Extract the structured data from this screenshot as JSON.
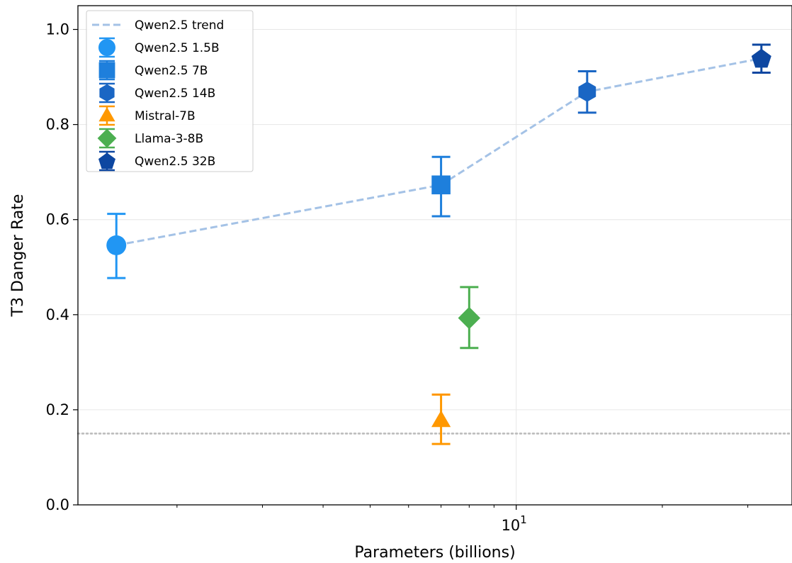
{
  "chart_data": {
    "type": "scatter",
    "xlabel": "Parameters (billions)",
    "ylabel": "T3 Danger Rate",
    "x_scale": "log",
    "xlim": [
      1.25,
      37
    ],
    "ylim": [
      0.0,
      1.05
    ],
    "x_ticks": [
      {
        "value": 10,
        "base": "10",
        "exp": "1"
      }
    ],
    "y_ticks": [
      0.0,
      0.2,
      0.4,
      0.6,
      0.8,
      1.0
    ],
    "y_tick_labels": [
      "0.0",
      "0.2",
      "0.4",
      "0.6",
      "0.8",
      "1.0"
    ],
    "grid": true,
    "legend_position": "upper-left",
    "reference_line": {
      "y": 0.15,
      "style": "dotted",
      "color": "#bbbbbb"
    },
    "trend": {
      "name": "Qwen2.5 trend",
      "color": "#a4c2e6",
      "x": [
        1.5,
        7,
        14,
        32
      ],
      "y": [
        0.546,
        0.673,
        0.869,
        0.939
      ]
    },
    "series": [
      {
        "name": "Qwen2.5 1.5B",
        "x": 1.5,
        "y": 0.546,
        "yerr_low": 0.477,
        "yerr_high": 0.612,
        "marker": "circle",
        "color": "#2196f3"
      },
      {
        "name": "Qwen2.5 7B",
        "x": 7,
        "y": 0.673,
        "yerr_low": 0.607,
        "yerr_high": 0.732,
        "marker": "square",
        "color": "#1e7fdc"
      },
      {
        "name": "Qwen2.5 14B",
        "x": 14,
        "y": 0.869,
        "yerr_low": 0.825,
        "yerr_high": 0.912,
        "marker": "hexagon",
        "color": "#1a66c4"
      },
      {
        "name": "Mistral-7B",
        "x": 7,
        "y": 0.178,
        "yerr_low": 0.128,
        "yerr_high": 0.232,
        "marker": "triangle",
        "color": "#ff9800"
      },
      {
        "name": "Llama-3-8B",
        "x": 8,
        "y": 0.393,
        "yerr_low": 0.33,
        "yerr_high": 0.458,
        "marker": "diamond",
        "color": "#4caf50"
      },
      {
        "name": "Qwen2.5 32B",
        "x": 32,
        "y": 0.939,
        "yerr_low": 0.909,
        "yerr_high": 0.968,
        "marker": "pentagon",
        "color": "#0d47a1"
      }
    ]
  }
}
